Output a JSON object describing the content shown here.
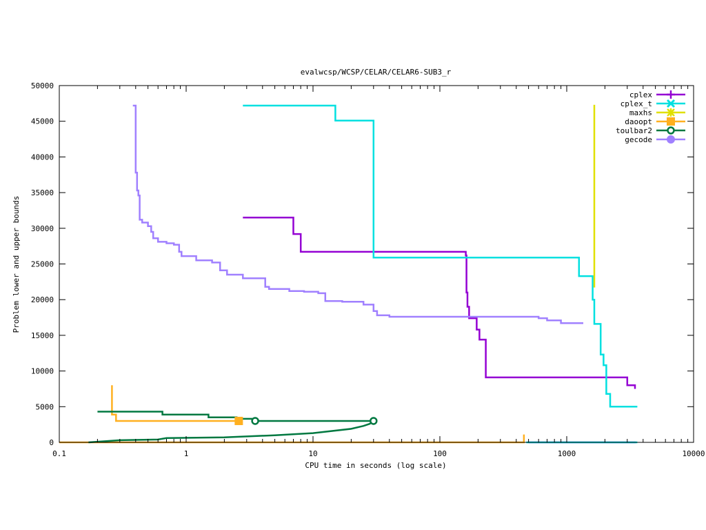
{
  "chart_data": {
    "type": "line",
    "title": "evalwcsp/WCSP/CELAR/CELAR6-SUB3_r",
    "xlabel": "CPU time in seconds (log scale)",
    "ylabel": "Problem lower and upper bounds",
    "xscale": "log",
    "xlim": [
      0.1,
      10000
    ],
    "ylim": [
      0,
      50000
    ],
    "x_ticks": [
      0.1,
      1,
      10,
      100,
      1000,
      10000
    ],
    "x_tick_labels": [
      "0.1",
      "1",
      "10",
      "100",
      "1000",
      "10000"
    ],
    "y_ticks": [
      0,
      5000,
      10000,
      15000,
      20000,
      25000,
      30000,
      35000,
      40000,
      45000,
      50000
    ],
    "y_tick_labels": [
      "0",
      "5000",
      "10000",
      "15000",
      "20000",
      "25000",
      "30000",
      "35000",
      "40000",
      "45000",
      "50000"
    ],
    "grid": false,
    "legend_position": "top-right",
    "series": [
      {
        "name": "cplex",
        "color": "#9400d3",
        "marker": "plus",
        "step": true,
        "upper": [
          [
            2.8,
            31500
          ],
          [
            7.0,
            31500
          ],
          [
            7.0,
            29200
          ],
          [
            8.0,
            29200
          ],
          [
            8.0,
            26700
          ],
          [
            160,
            26700
          ],
          [
            160,
            26200
          ],
          [
            162,
            26200
          ],
          [
            162,
            21000
          ],
          [
            165,
            21000
          ],
          [
            165,
            19000
          ],
          [
            170,
            19000
          ],
          [
            170,
            17400
          ],
          [
            195,
            17400
          ],
          [
            195,
            15800
          ],
          [
            205,
            15800
          ],
          [
            205,
            14400
          ],
          [
            230,
            14400
          ],
          [
            230,
            9100
          ],
          [
            3000,
            9100
          ],
          [
            3000,
            8000
          ],
          [
            3450,
            8000
          ],
          [
            3450,
            7500
          ]
        ],
        "lower": [
          [
            500,
            0
          ],
          [
            3500,
            0
          ]
        ]
      },
      {
        "name": "cplex_t",
        "color": "#00e0e0",
        "marker": "cross",
        "step": true,
        "upper": [
          [
            2.8,
            47200
          ],
          [
            15,
            47200
          ],
          [
            15,
            45100
          ],
          [
            30,
            45100
          ],
          [
            30,
            25900
          ],
          [
            1250,
            25900
          ],
          [
            1250,
            23300
          ],
          [
            1600,
            23300
          ],
          [
            1600,
            20000
          ],
          [
            1650,
            20000
          ],
          [
            1650,
            16600
          ],
          [
            1850,
            16600
          ],
          [
            1850,
            12300
          ],
          [
            1950,
            12300
          ],
          [
            1950,
            10800
          ],
          [
            2050,
            10800
          ],
          [
            2050,
            6800
          ],
          [
            2200,
            6800
          ],
          [
            2200,
            5000
          ],
          [
            3600,
            5000
          ]
        ],
        "lower": [
          [
            480,
            0
          ],
          [
            3600,
            0
          ]
        ]
      },
      {
        "name": "maxhs",
        "color": "#e0e000",
        "marker": "star",
        "step": true,
        "upper": [
          [
            1650,
            21700
          ],
          [
            1650,
            47300
          ]
        ],
        "lower": []
      },
      {
        "name": "daoopt",
        "color": "#ffb020",
        "marker": "square",
        "step": true,
        "upper": [
          [
            0.26,
            8000
          ],
          [
            0.26,
            3900
          ],
          [
            0.28,
            3900
          ],
          [
            0.28,
            3000
          ],
          [
            2.6,
            3000
          ]
        ],
        "lower": [
          [
            0.1,
            0
          ],
          [
            460,
            0
          ],
          [
            460,
            1100
          ]
        ]
      },
      {
        "name": "toulbar2",
        "color": "#007840",
        "marker": "circle-open",
        "step": true,
        "upper": [
          [
            0.2,
            4300
          ],
          [
            0.65,
            4300
          ],
          [
            0.65,
            3900
          ],
          [
            1.5,
            3900
          ],
          [
            1.5,
            3500
          ],
          [
            2.5,
            3500
          ],
          [
            2.5,
            3300
          ],
          [
            3.5,
            3300
          ],
          [
            3.5,
            3000
          ],
          [
            30,
            3000
          ]
        ],
        "lower": [
          [
            0.17,
            0
          ],
          [
            0.3,
            300
          ],
          [
            0.6,
            400
          ],
          [
            0.7,
            600
          ],
          [
            2.0,
            700
          ],
          [
            5,
            1000
          ],
          [
            10,
            1300
          ],
          [
            20,
            1900
          ],
          [
            25,
            2300
          ],
          [
            28,
            2600
          ],
          [
            30,
            3000
          ]
        ]
      },
      {
        "name": "gecode",
        "color": "#a080ff",
        "marker": "circle",
        "step": true,
        "upper": [
          [
            0.38,
            47200
          ],
          [
            0.4,
            47200
          ],
          [
            0.4,
            37800
          ],
          [
            0.41,
            37800
          ],
          [
            0.41,
            35300
          ],
          [
            0.42,
            35300
          ],
          [
            0.42,
            34600
          ],
          [
            0.43,
            34600
          ],
          [
            0.43,
            31200
          ],
          [
            0.45,
            31200
          ],
          [
            0.45,
            30800
          ],
          [
            0.5,
            30800
          ],
          [
            0.5,
            30300
          ],
          [
            0.53,
            30300
          ],
          [
            0.53,
            29500
          ],
          [
            0.55,
            29500
          ],
          [
            0.55,
            28600
          ],
          [
            0.6,
            28600
          ],
          [
            0.6,
            28100
          ],
          [
            0.7,
            28100
          ],
          [
            0.7,
            27900
          ],
          [
            0.8,
            27900
          ],
          [
            0.8,
            27700
          ],
          [
            0.88,
            27700
          ],
          [
            0.88,
            26700
          ],
          [
            0.92,
            26700
          ],
          [
            0.92,
            26100
          ],
          [
            1.2,
            26100
          ],
          [
            1.2,
            25500
          ],
          [
            1.6,
            25500
          ],
          [
            1.6,
            25200
          ],
          [
            1.85,
            25200
          ],
          [
            1.85,
            24100
          ],
          [
            2.1,
            24100
          ],
          [
            2.1,
            23500
          ],
          [
            2.8,
            23500
          ],
          [
            2.8,
            23000
          ],
          [
            4.2,
            23000
          ],
          [
            4.2,
            21800
          ],
          [
            4.5,
            21800
          ],
          [
            4.5,
            21500
          ],
          [
            6.5,
            21500
          ],
          [
            6.5,
            21200
          ],
          [
            8.5,
            21200
          ],
          [
            8.5,
            21100
          ],
          [
            11,
            21100
          ],
          [
            11,
            20900
          ],
          [
            12.5,
            20900
          ],
          [
            12.5,
            19800
          ],
          [
            17,
            19800
          ],
          [
            17,
            19700
          ],
          [
            25,
            19700
          ],
          [
            25,
            19300
          ],
          [
            30,
            19300
          ],
          [
            30,
            18400
          ],
          [
            32,
            18400
          ],
          [
            32,
            17800
          ],
          [
            40,
            17800
          ],
          [
            40,
            17600
          ],
          [
            600,
            17600
          ],
          [
            600,
            17400
          ],
          [
            700,
            17400
          ],
          [
            700,
            17100
          ],
          [
            900,
            17100
          ],
          [
            900,
            16700
          ],
          [
            1350,
            16700
          ]
        ],
        "lower": []
      }
    ]
  }
}
